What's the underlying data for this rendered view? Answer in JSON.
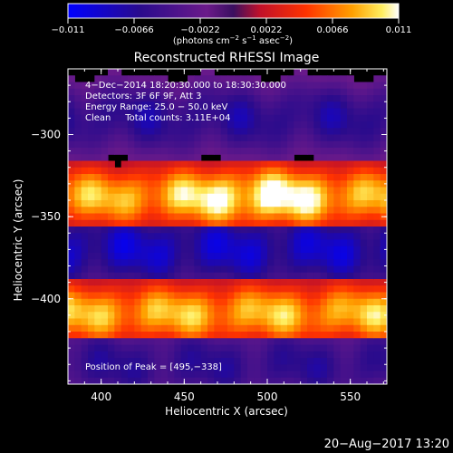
{
  "chart_data": {
    "type": "heatmap",
    "title": "Reconstructed RHESSI Image",
    "xlabel": "Heliocentric X (arcsec)",
    "ylabel": "Heliocentric Y (arcsec)",
    "xlim": [
      380,
      572
    ],
    "ylim": [
      -452,
      -260
    ],
    "x_ticks": [
      400,
      450,
      500,
      550
    ],
    "y_ticks": [
      -300,
      -350,
      -400
    ],
    "x_tick_labels": [
      "400",
      "450",
      "500",
      "550"
    ],
    "y_tick_labels": [
      "−300",
      "−350",
      "−400"
    ],
    "colorbar": {
      "range": [
        -0.011,
        0.011
      ],
      "ticks": [
        -0.011,
        -0.0066,
        -0.0022,
        0.0022,
        0.0066,
        0.011
      ],
      "tick_labels": [
        "−0.011",
        "−0.0066",
        "−0.0022",
        "0.0022",
        "0.0066",
        "0.011"
      ],
      "units_prefix": "(photons cm",
      "units_exp1": "−2",
      "units_mid1": " s",
      "units_exp2": "−1",
      "units_mid2": " asec",
      "units_exp3": "−2",
      "units_suffix": ")"
    },
    "annotations": [
      "4−Dec−2014 18:20:30.000 to 18:30:30.000",
      "Detectors: 3F 6F 9F, Att 3",
      "Energy Range: 25.0 − 50.0 keV",
      "Clean     Total counts: 3.11E+04"
    ],
    "peak_label": "Position of Peak = [495,−338]",
    "bands": [
      {
        "y_center": -290,
        "value": -0.0062
      },
      {
        "y_center": -338,
        "value": 0.0105
      },
      {
        "y_center": -370,
        "value": -0.0082
      },
      {
        "y_center": -409,
        "value": 0.0083
      },
      {
        "y_center": -440,
        "value": -0.0058
      }
    ],
    "peak": {
      "x": 495,
      "y": -338
    }
  },
  "timestamp": "20−Aug−2017 13:20"
}
